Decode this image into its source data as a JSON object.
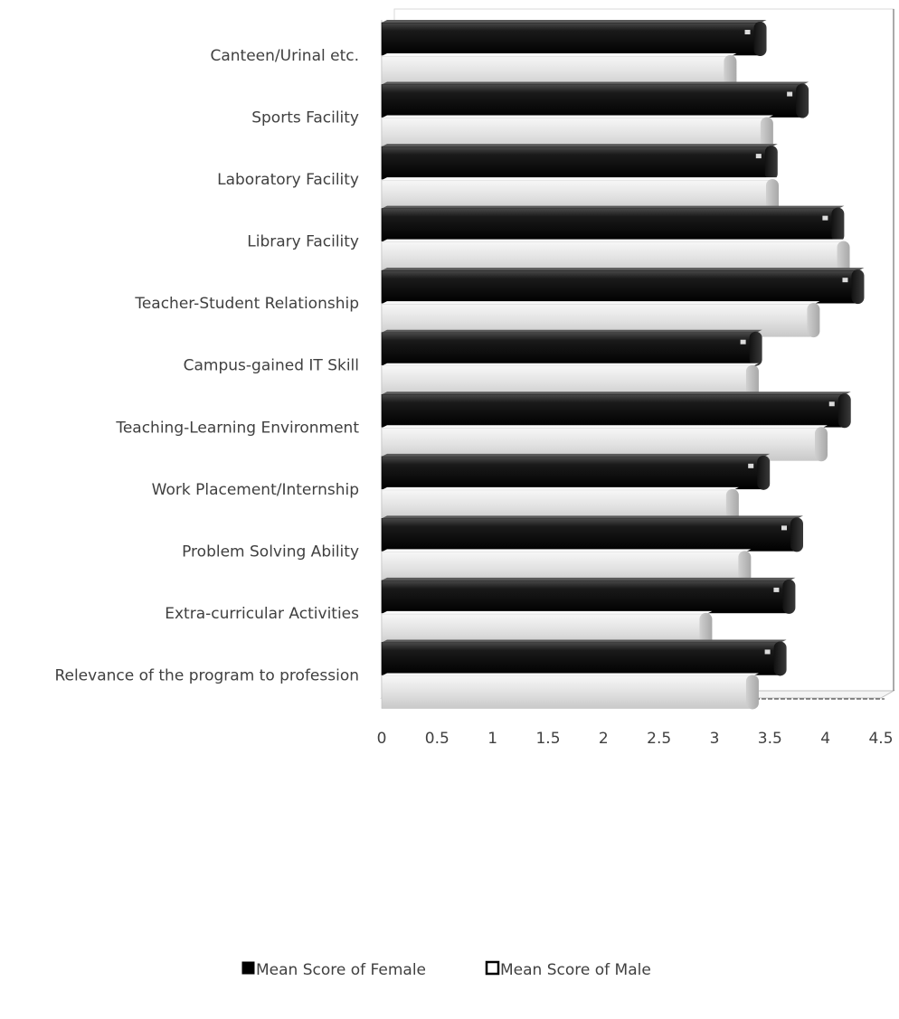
{
  "chart_data": {
    "type": "bar",
    "orientation": "horizontal",
    "title": "",
    "xlabel": "",
    "ylabel": "",
    "xlim": [
      0,
      4.5
    ],
    "x_ticks": [
      "0",
      "0.5",
      "1",
      "1.5",
      "2",
      "2.5",
      "3",
      "3.5",
      "4",
      "4.5"
    ],
    "grid": true,
    "legend_position": "bottom",
    "categories": [
      "Canteen/Urinal etc.",
      "Sports Facility",
      "Laboratory Facility",
      "Library Facility",
      "Teacher-Student Relationship",
      "Campus-gained IT Skill",
      "Teaching-Learning Environment",
      "Work Placement/Internship",
      "Problem Solving Ability",
      "Extra-curricular Activities",
      "Relevance of the program to profession"
    ],
    "series": [
      {
        "name": "Mean Score of Female",
        "color": "#0d0d0d",
        "values": [
          3.42,
          3.8,
          3.52,
          4.12,
          4.3,
          3.38,
          4.18,
          3.45,
          3.75,
          3.68,
          3.6
        ]
      },
      {
        "name": "Mean Score of Male",
        "color": "#e4e4e4",
        "values": [
          3.15,
          3.48,
          3.53,
          4.17,
          3.9,
          3.35,
          3.97,
          3.17,
          3.28,
          2.93,
          3.35
        ]
      }
    ]
  }
}
